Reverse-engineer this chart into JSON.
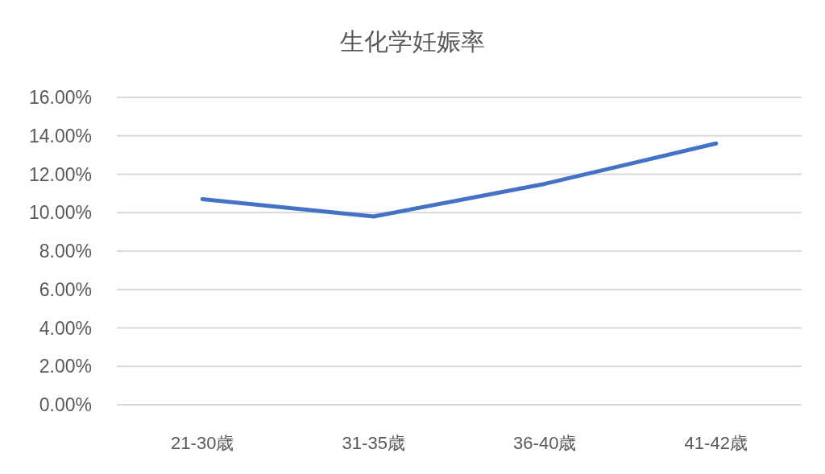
{
  "chart_data": {
    "type": "line",
    "title": "生化学妊娠率",
    "categories": [
      "21-30歳",
      "31-35歳",
      "36-40歳",
      "41-42歳"
    ],
    "series": [
      {
        "color": "#4472c4",
        "values": [
          10.7,
          9.8,
          11.5,
          13.6
        ]
      }
    ],
    "ylim": [
      0,
      16
    ],
    "yticks": [
      {
        "value": 0,
        "label": "0.00%"
      },
      {
        "value": 2,
        "label": "2.00%"
      },
      {
        "value": 4,
        "label": "4.00%"
      },
      {
        "value": 6,
        "label": "6.00%"
      },
      {
        "value": 8,
        "label": "8.00%"
      },
      {
        "value": 10,
        "label": "10.00%"
      },
      {
        "value": 12,
        "label": "12.00%"
      },
      {
        "value": 14,
        "label": "14.00%"
      },
      {
        "value": 16,
        "label": "16.00%"
      }
    ],
    "grid": "y",
    "marker": "none",
    "line_style": "solid"
  }
}
